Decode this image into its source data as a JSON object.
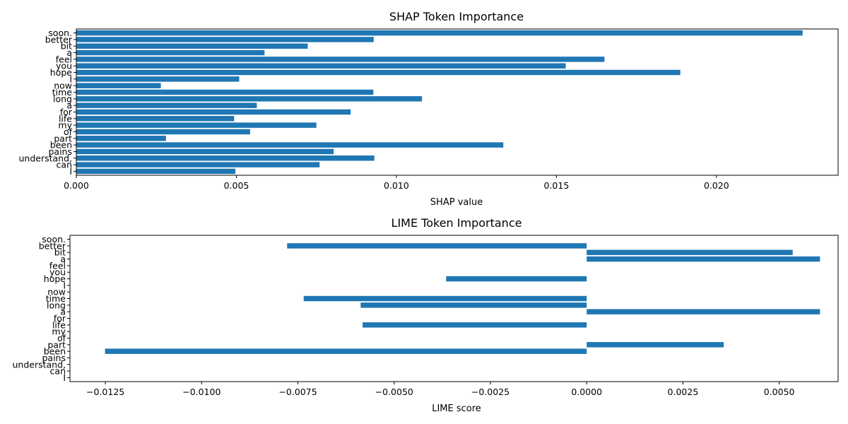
{
  "chart_data": [
    {
      "type": "bar",
      "orientation": "horizontal",
      "title": "SHAP Token Importance",
      "xlabel": "SHAP value",
      "ylabel": "",
      "categories": [
        "I",
        "can",
        "understand,",
        "pains",
        "been",
        "part",
        "of",
        "my",
        "life",
        "for",
        "a",
        "long",
        "time",
        "now",
        "I",
        "hope",
        "you",
        "feel",
        "a",
        "bit",
        "better",
        "soon."
      ],
      "values": [
        0.00497,
        0.0076,
        0.00931,
        0.00804,
        0.01334,
        0.0028,
        0.00543,
        0.0075,
        0.00493,
        0.00857,
        0.00564,
        0.0108,
        0.00928,
        0.00264,
        0.00509,
        0.01887,
        0.01529,
        0.0165,
        0.00588,
        0.00723,
        0.00929,
        0.02269
      ],
      "xlim": [
        0.0,
        0.0238
      ],
      "xticks": [
        "0.000",
        "0.005",
        "0.010",
        "0.015",
        "0.020"
      ],
      "xtick_values": [
        0.0,
        0.005,
        0.01,
        0.015,
        0.02
      ],
      "color": "#1f77b4",
      "grid": false
    },
    {
      "type": "bar",
      "orientation": "horizontal",
      "title": "LIME Token Importance",
      "xlabel": "LIME score",
      "ylabel": "",
      "categories": [
        "I",
        "can",
        "understand,",
        "pains",
        "been",
        "part",
        "of",
        "my",
        "life",
        "for",
        "a",
        "long",
        "time",
        "now",
        "I",
        "hope",
        "you",
        "feel",
        "a",
        "bit",
        "better",
        "soon."
      ],
      "values": [
        0,
        0,
        0,
        0,
        -0.01251,
        0.00356,
        0,
        0,
        -0.00582,
        0,
        0.00606,
        -0.00587,
        -0.00735,
        0,
        0,
        -0.00365,
        0,
        0,
        0.00606,
        0.00535,
        -0.00778,
        0
      ],
      "xlim": [
        -0.01342,
        0.00653
      ],
      "xticks": [
        "−0.0125",
        "−0.0100",
        "−0.0075",
        "−0.0050",
        "−0.0025",
        "0.0000",
        "0.0025",
        "0.0050"
      ],
      "xtick_values": [
        -0.0125,
        -0.01,
        -0.0075,
        -0.005,
        -0.0025,
        0.0,
        0.0025,
        0.005
      ],
      "color": "#1f77b4",
      "grid": false
    }
  ]
}
